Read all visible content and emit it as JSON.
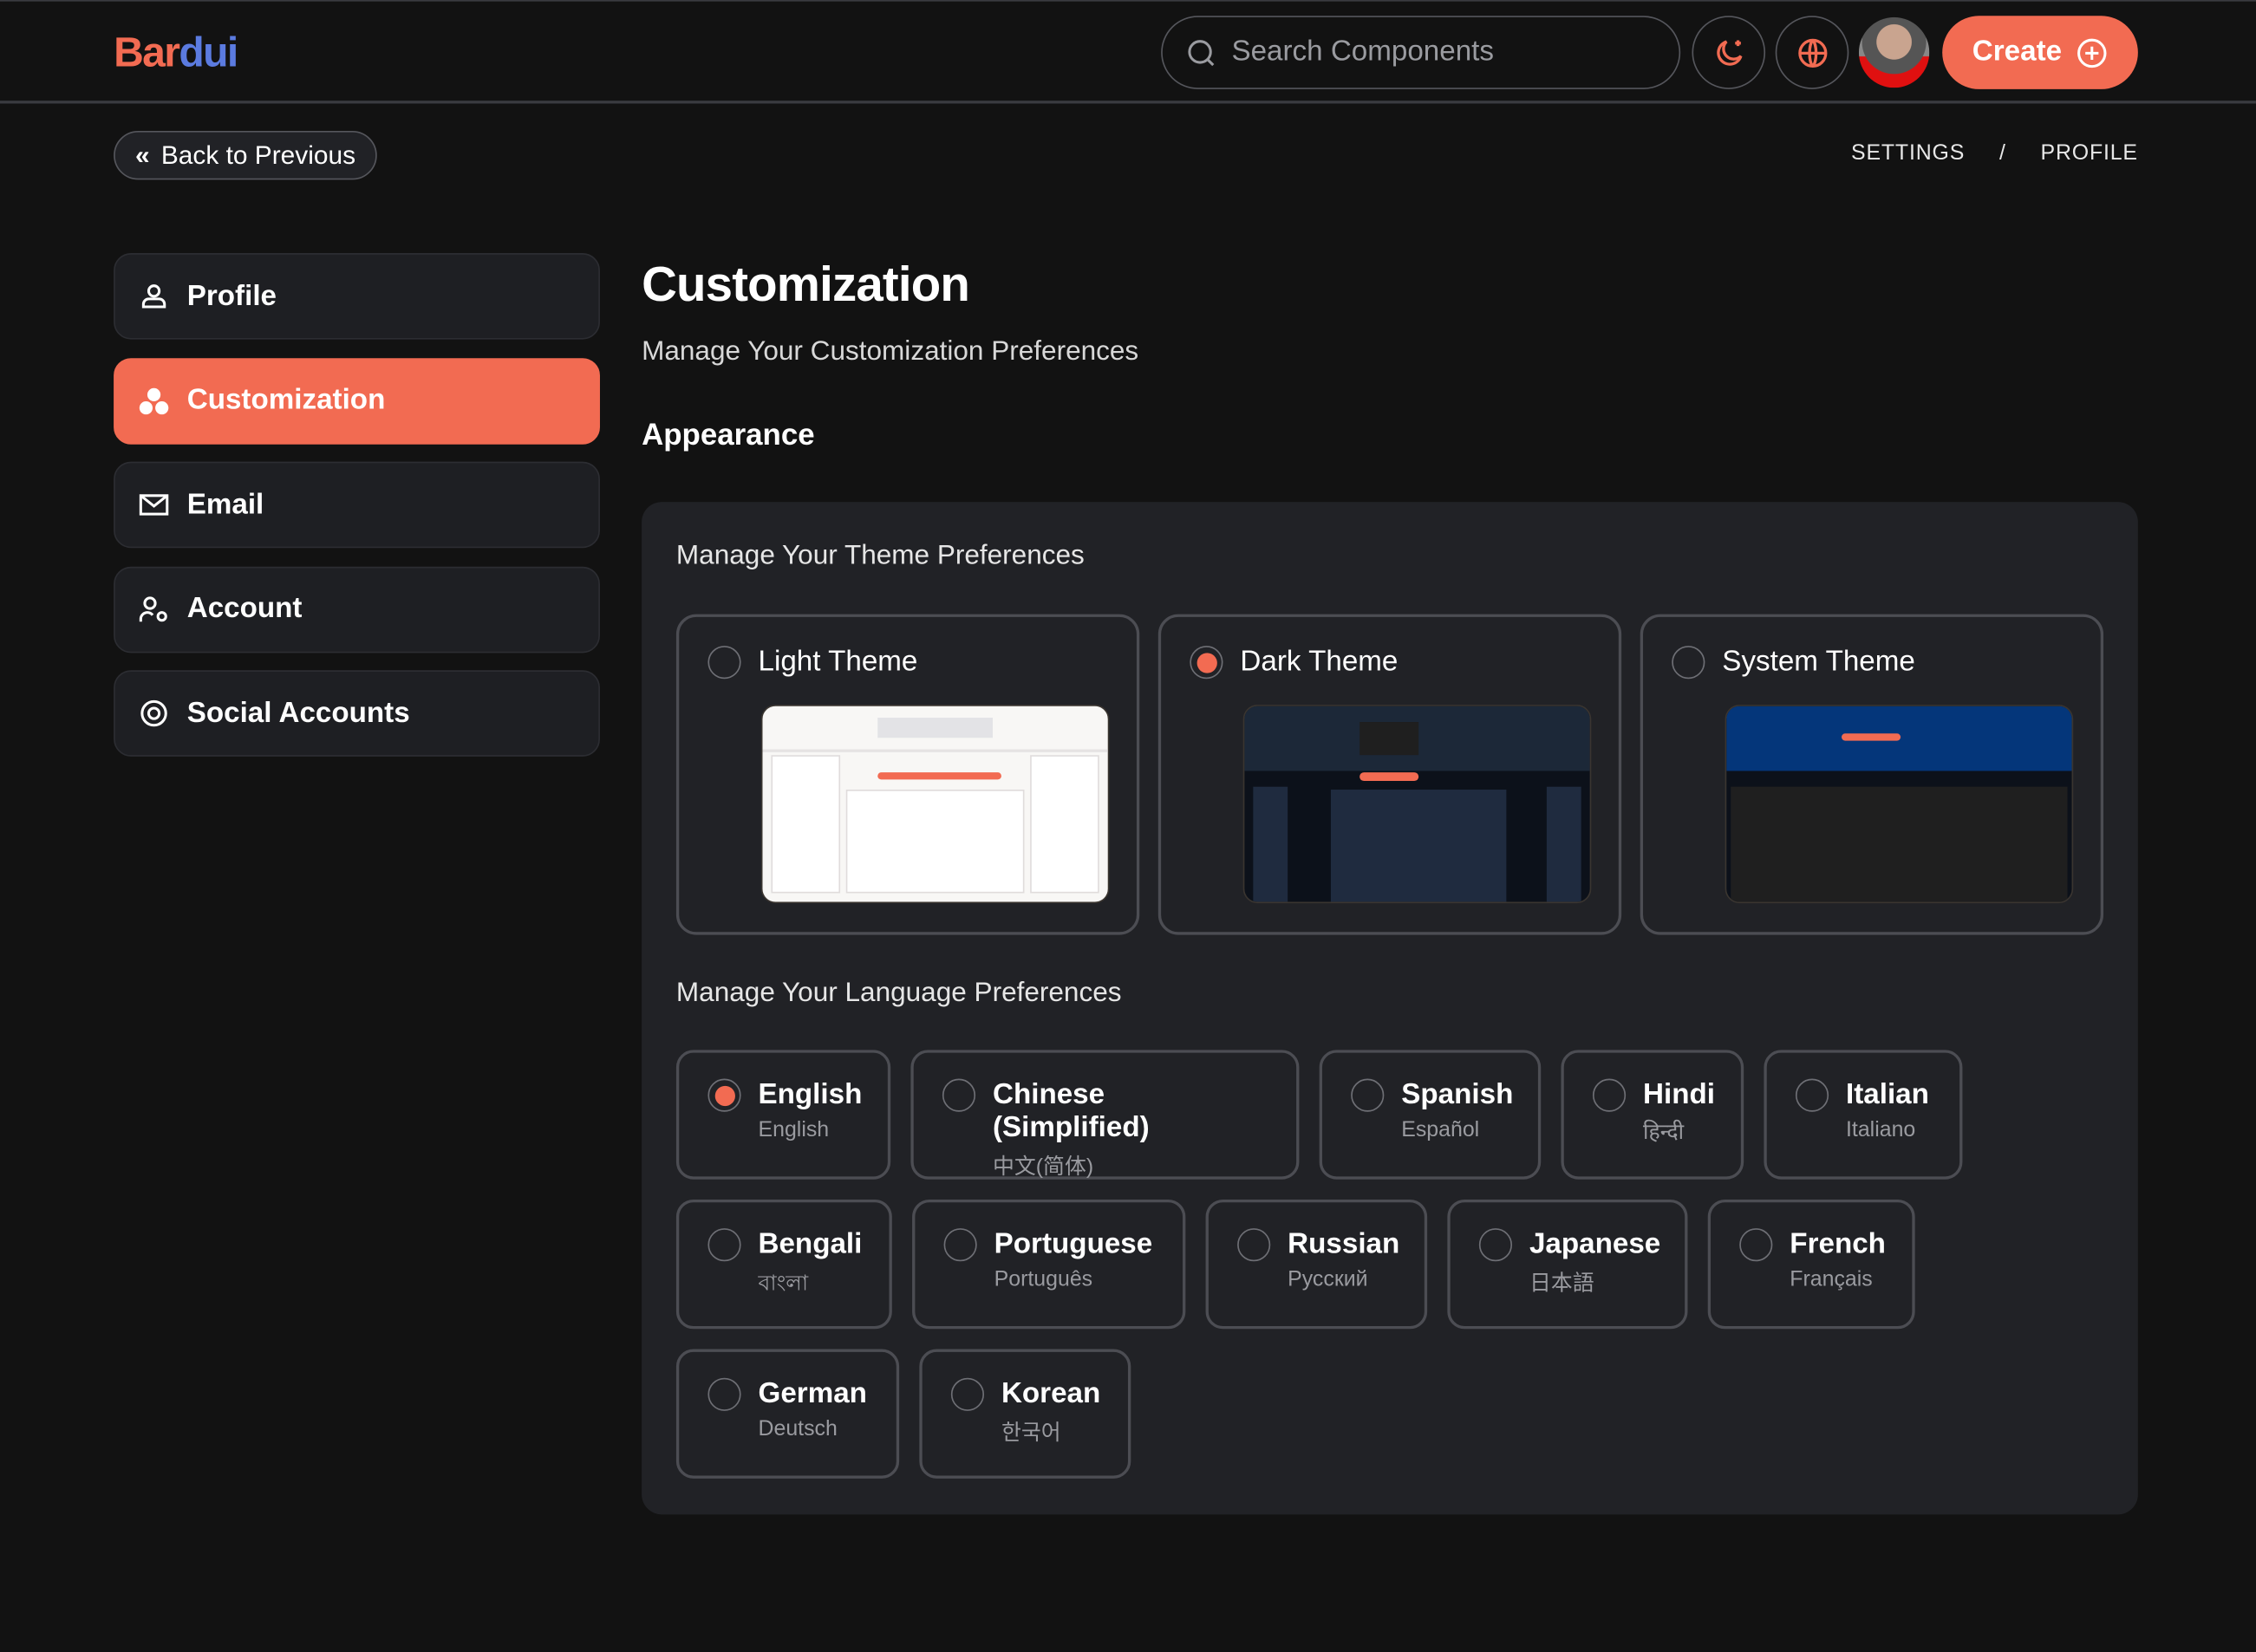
{
  "header": {
    "logo_part1": "Bar",
    "logo_part2": "dui",
    "search_placeholder": "Search Components",
    "create_label": "Create"
  },
  "nav": {
    "back_label": "Back to Previous",
    "breadcrumb": [
      "SETTINGS",
      "/",
      "PROFILE"
    ]
  },
  "sidebar": {
    "items": [
      {
        "label": "Profile",
        "icon": "user-icon"
      },
      {
        "label": "Customization",
        "icon": "palette-icon",
        "active": true
      },
      {
        "label": "Email",
        "icon": "mail-icon"
      },
      {
        "label": "Account",
        "icon": "user-gear-icon"
      },
      {
        "label": "Social Accounts",
        "icon": "at-icon"
      }
    ]
  },
  "main": {
    "title": "Customization",
    "subtitle": "Manage Your Customization Preferences",
    "section": "Appearance",
    "theme_heading": "Manage Your Theme Preferences",
    "themes": [
      {
        "label": "Light Theme",
        "selected": false
      },
      {
        "label": "Dark Theme",
        "selected": true
      },
      {
        "label": "System Theme",
        "selected": false
      }
    ],
    "language_heading": "Manage Your Language Preferences",
    "languages": [
      {
        "name": "English",
        "native": "English",
        "selected": true
      },
      {
        "name": "Chinese (Simplified)",
        "native": "中文(简体)"
      },
      {
        "name": "Spanish",
        "native": "Español"
      },
      {
        "name": "Hindi",
        "native": "हिन्दी"
      },
      {
        "name": "Italian",
        "native": "Italiano"
      },
      {
        "name": "Bengali",
        "native": "বাংলা"
      },
      {
        "name": "Portuguese",
        "native": "Português"
      },
      {
        "name": "Russian",
        "native": "Русский"
      },
      {
        "name": "Japanese",
        "native": "日本語"
      },
      {
        "name": "French",
        "native": "Français"
      },
      {
        "name": "German",
        "native": "Deutsch"
      },
      {
        "name": "Korean",
        "native": "한국어"
      }
    ]
  },
  "colors": {
    "accent": "#f26b52",
    "background": "#121212",
    "panel": "#212226",
    "logo_blue": "#5b7be0"
  }
}
